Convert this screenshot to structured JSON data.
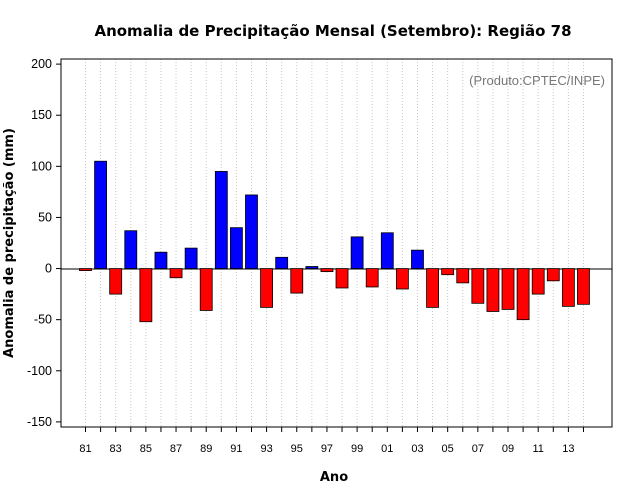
{
  "chart_data": {
    "type": "bar",
    "title": "Anomalia de Precipitação Mensal (Setembro): Região 78",
    "xlabel": "Ano",
    "ylabel": "Anomalia de precipitação (mm)",
    "credit": "(Produto:CPTEC/INPE)",
    "ylim": [
      -155,
      205
    ],
    "yticks": [
      -150,
      -100,
      -50,
      0,
      50,
      100,
      150,
      200
    ],
    "years": [
      1981,
      1982,
      1983,
      1984,
      1985,
      1986,
      1987,
      1988,
      1989,
      1990,
      1991,
      1992,
      1993,
      1994,
      1995,
      1996,
      1997,
      1998,
      1999,
      2000,
      2001,
      2002,
      2003,
      2004,
      2005,
      2006,
      2007,
      2008,
      2009,
      2010,
      2011,
      2012,
      2013,
      2014
    ],
    "x_tick_labels": [
      "81",
      "83",
      "85",
      "87",
      "89",
      "91",
      "93",
      "95",
      "97",
      "99",
      "01",
      "03",
      "05",
      "07",
      "09",
      "11",
      "13"
    ],
    "values": [
      -2,
      105,
      -25,
      37,
      -52,
      16,
      -9,
      20,
      -41,
      95,
      40,
      72,
      -38,
      11,
      -24,
      2,
      -3,
      -19,
      31,
      -18,
      35,
      -20,
      18,
      -38,
      -6,
      -14,
      -34,
      -42,
      -40,
      -50,
      -25,
      -12,
      -37,
      -35
    ],
    "colors": {
      "positive": "#0000ff",
      "negative": "#ff0000",
      "grid": "#c8c8c8"
    },
    "grid": true
  }
}
